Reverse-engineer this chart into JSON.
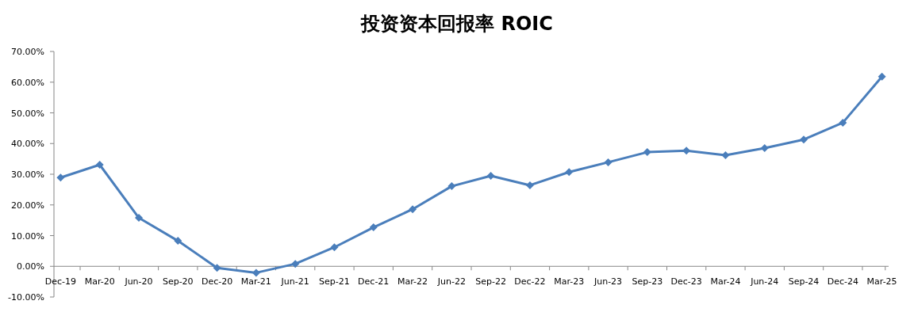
{
  "chart_data": {
    "type": "line",
    "title": "投资资本回报率 ROIC",
    "categories": [
      "Dec-19",
      "Mar-20",
      "Jun-20",
      "Sep-20",
      "Dec-20",
      "Mar-21",
      "Jun-21",
      "Sep-21",
      "Dec-21",
      "Mar-22",
      "Jun-22",
      "Sep-22",
      "Dec-22",
      "Mar-23",
      "Jun-23",
      "Sep-23",
      "Dec-23",
      "Mar-24",
      "Jun-24",
      "Sep-24",
      "Dec-24",
      "Mar-25"
    ],
    "series": [
      {
        "color": "#4a7ebb",
        "values": [
          28.9,
          33.1,
          15.8,
          8.3,
          -0.5,
          -2.1,
          0.8,
          6.2,
          12.7,
          18.6,
          26.1,
          29.5,
          26.4,
          30.7,
          33.9,
          37.2,
          37.7,
          36.2,
          38.5,
          41.3,
          46.8,
          61.8
        ]
      }
    ],
    "ylim": [
      -10,
      70
    ],
    "yticks": [
      {
        "value": -10,
        "label": "-10.00%"
      },
      {
        "value": 0,
        "label": "0.00%"
      },
      {
        "value": 10,
        "label": "10.00%"
      },
      {
        "value": 20,
        "label": "20.00%"
      },
      {
        "value": 30,
        "label": "30.00%"
      },
      {
        "value": 40,
        "label": "40.00%"
      },
      {
        "value": 50,
        "label": "50.00%"
      },
      {
        "value": 60,
        "label": "60.00%"
      },
      {
        "value": 70,
        "label": "70.00%"
      }
    ],
    "marker": "diamond",
    "line_style": "solid",
    "grid": false
  }
}
